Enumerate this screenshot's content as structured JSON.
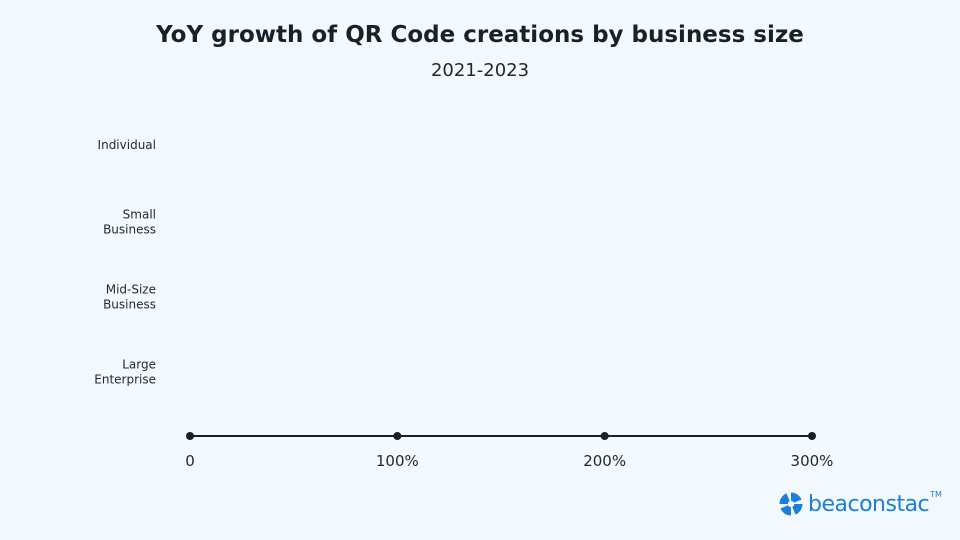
{
  "chart_data": {
    "type": "bar",
    "orientation": "horizontal",
    "title": "YoY growth of QR Code creations by business size",
    "subtitle": "2021-2023",
    "categories": [
      [
        "Individual"
      ],
      [
        "Small",
        "Business"
      ],
      [
        "Mid-Size",
        "Business"
      ],
      [
        "Large",
        "Enterprise"
      ]
    ],
    "values": [
      null,
      null,
      null,
      null
    ],
    "xticks": [
      "0",
      "100%",
      "200%",
      "300%"
    ],
    "xtick_values": [
      0,
      100,
      200,
      300
    ],
    "xlim": [
      0,
      300
    ],
    "grid": false,
    "axis_color": "#17212b"
  },
  "brand": {
    "name": "beaconstac",
    "trademark": "TM",
    "color": "#1b7fd9",
    "icon": "beaconstac-logo-icon"
  }
}
